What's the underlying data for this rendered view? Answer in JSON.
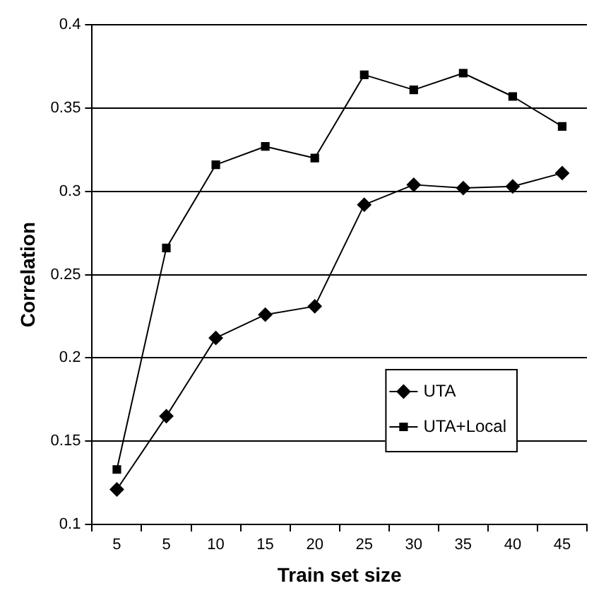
{
  "chart_data": {
    "type": "line",
    "xlabel": "Train set size",
    "ylabel": "Correlation",
    "categories": [
      "5",
      "5",
      "10",
      "15",
      "20",
      "25",
      "30",
      "35",
      "40",
      "45"
    ],
    "series": [
      {
        "name": "UTA",
        "color": "#000000",
        "marker": "diamond",
        "values": [
          0.121,
          0.165,
          0.212,
          0.226,
          0.231,
          0.292,
          0.304,
          0.302,
          0.303,
          0.311
        ]
      },
      {
        "name": "UTA+Local",
        "color": "#000000",
        "marker": "square",
        "values": [
          0.133,
          0.266,
          0.316,
          0.327,
          0.32,
          0.37,
          0.361,
          0.371,
          0.357,
          0.339
        ]
      }
    ],
    "ylim": [
      0.1,
      0.4
    ],
    "yticks": [
      0.1,
      0.15,
      0.2,
      0.25,
      0.3,
      0.35,
      0.4
    ],
    "grid": "y",
    "legend": "bottom right",
    "line_style": "solid"
  }
}
